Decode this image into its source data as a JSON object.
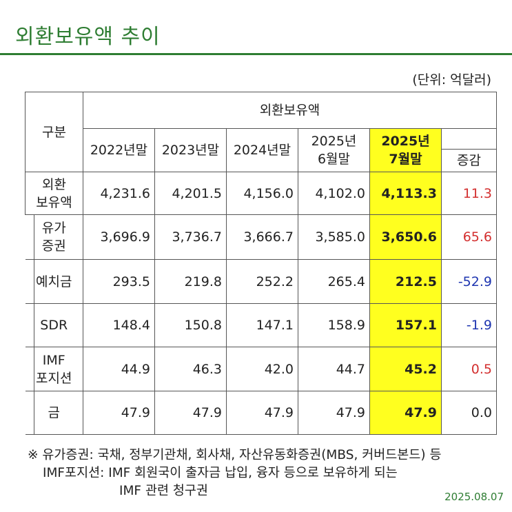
{
  "title": "외환보유액 추이",
  "unit": "(단위: 억달러)",
  "table": {
    "corner_label": "구분",
    "group_header": "외환보유액",
    "columns": {
      "c2022": "2022년말",
      "c2023": "2023년말",
      "c2024": "2024년말",
      "c2025_6_l1": "2025년",
      "c2025_6_l2": "6월말",
      "c2025_7_l1": "2025년",
      "c2025_7_l2": "7월말",
      "change": "증감"
    },
    "rows": [
      {
        "l1": "외환",
        "l2": "보유액",
        "v": [
          "4,231.6",
          "4,201.5",
          "4,156.0",
          "4,102.0",
          "4,113.3",
          "11.3"
        ]
      },
      {
        "l1": "유가",
        "l2": "증권",
        "v": [
          "3,696.9",
          "3,736.7",
          "3,666.7",
          "3,585.0",
          "3,650.6",
          "65.6"
        ]
      },
      {
        "l1": "예치금",
        "l2": "",
        "v": [
          "293.5",
          "219.8",
          "252.2",
          "265.4",
          "212.5",
          "-52.9"
        ]
      },
      {
        "l1": "SDR",
        "l2": "",
        "v": [
          "148.4",
          "150.8",
          "147.1",
          "158.9",
          "157.1",
          "-1.9"
        ]
      },
      {
        "l1": "IMF",
        "l2": "포지션",
        "v": [
          "44.9",
          "46.3",
          "42.0",
          "44.7",
          "45.2",
          "0.5"
        ]
      },
      {
        "l1": "금",
        "l2": "",
        "v": [
          "47.9",
          "47.9",
          "47.9",
          "47.9",
          "47.9",
          "0.0"
        ]
      }
    ]
  },
  "notes": {
    "line1": "※ 유가증권: 국채, 정부기관채, 회사채, 자산유동화증권(MBS, 커버드본드) 등",
    "line2": "IMF포지션: IMF 회원국이 출자금 납입, 융자 등으로 보유하게 되는",
    "line3": "IMF 관련 청구권"
  },
  "date": "2025.08.07",
  "colors": {
    "accent_green": "#2e7d32",
    "highlight_yellow": "#ffff1f",
    "increase_red": "#d32f2f",
    "decrease_blue": "#1e35b0"
  }
}
